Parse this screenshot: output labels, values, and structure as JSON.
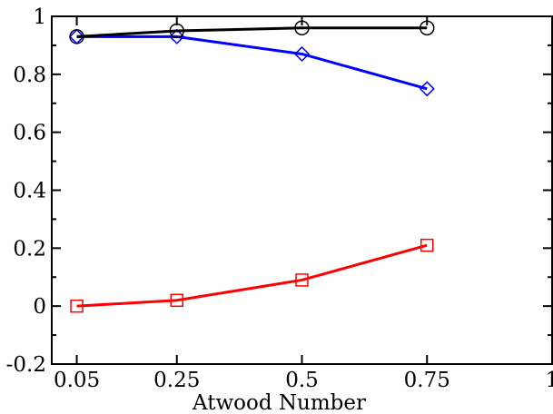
{
  "chart_data": {
    "type": "line",
    "title": "",
    "xlabel": "Atwood Number",
    "ylabel": "",
    "xlim": [
      0.0,
      1.0
    ],
    "ylim": [
      -0.2,
      1.0
    ],
    "grid": false,
    "legend": "none",
    "x_ticks": [
      {
        "value": 0.05,
        "label": "0.05"
      },
      {
        "value": 0.25,
        "label": "0.25"
      },
      {
        "value": 0.5,
        "label": "0.5"
      },
      {
        "value": 0.75,
        "label": "0.75"
      },
      {
        "value": 1.0,
        "label": "1"
      }
    ],
    "y_ticks": [
      {
        "value": -0.2,
        "label": "-0.2"
      },
      {
        "value": 0.0,
        "label": "0"
      },
      {
        "value": 0.2,
        "label": "0.2"
      },
      {
        "value": 0.4,
        "label": "0.4"
      },
      {
        "value": 0.6,
        "label": "0.6"
      },
      {
        "value": 0.8,
        "label": "0.8"
      },
      {
        "value": 1.0,
        "label": "1"
      }
    ],
    "x": [
      0.05,
      0.25,
      0.5,
      0.75
    ],
    "series": [
      {
        "color": "#000000",
        "marker": "circle",
        "values": [
          0.93,
          0.95,
          0.96,
          0.96
        ]
      },
      {
        "color": "#0000ff",
        "marker": "diamond",
        "values": [
          0.93,
          0.93,
          0.87,
          0.75
        ]
      },
      {
        "color": "#ff0000",
        "marker": "square",
        "values": [
          0.0,
          0.02,
          0.09,
          0.21
        ]
      }
    ]
  }
}
